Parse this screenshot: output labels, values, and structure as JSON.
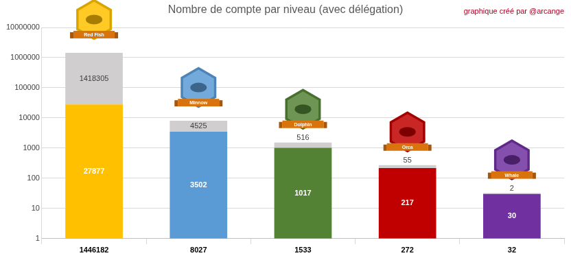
{
  "chart_data": {
    "type": "bar",
    "title": "Nombre de compte par niveau (avec délégation)",
    "annotation": "graphique créé par @arcange",
    "badge_labels": [
      "Red Fish",
      "Minnow",
      "Dolphin",
      "Orca",
      "Whale"
    ],
    "categories": [
      "1446182",
      "8027",
      "1533",
      "272",
      "32"
    ],
    "series": [
      {
        "colors": [
          "#ffc000",
          "#5b9bd5",
          "#548235",
          "#c00000",
          "#7030a0"
        ],
        "values": [
          27877,
          3502,
          1017,
          217,
          30
        ]
      },
      {
        "color": "#d0cece",
        "values": [
          1418305,
          4525,
          516,
          55,
          2
        ]
      }
    ],
    "stacked": true,
    "log": "y",
    "ylim": [
      1,
      10000000
    ],
    "yticks": [
      1,
      10,
      100,
      1000,
      10000,
      100000,
      1000000,
      10000000
    ],
    "grid": true,
    "data_labels": true
  }
}
